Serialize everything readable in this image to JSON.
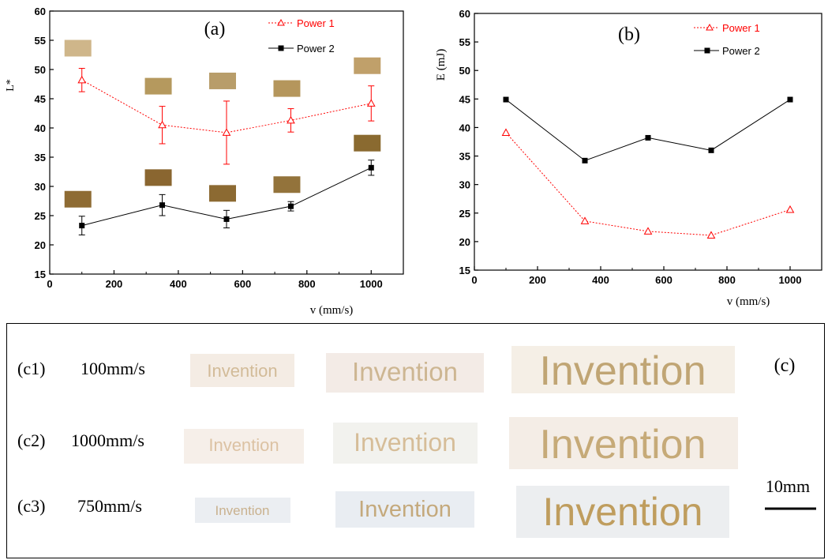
{
  "chart_data": [
    {
      "type": "line",
      "panel_label": "(a)",
      "xlabel": "v (mm/s)",
      "ylabel": "L*",
      "xlim": [
        0,
        1100
      ],
      "ylim": [
        15,
        60
      ],
      "xticks": [
        0,
        200,
        400,
        600,
        800,
        1000
      ],
      "yticks": [
        15,
        20,
        25,
        30,
        35,
        40,
        45,
        50,
        55,
        60
      ],
      "grid": false,
      "legend_position": "top-right",
      "x": [
        100,
        350,
        550,
        750,
        1000
      ],
      "series": [
        {
          "name": "Power 1",
          "values": [
            48.2,
            40.5,
            39.2,
            41.3,
            44.2
          ],
          "error": [
            2.0,
            3.2,
            5.4,
            2.0,
            3.0
          ],
          "color": "#ff0000",
          "marker": "open-triangle",
          "line": "dotted"
        },
        {
          "name": "Power 2",
          "values": [
            23.3,
            26.8,
            24.4,
            26.6,
            33.2
          ],
          "error": [
            1.6,
            1.8,
            1.5,
            0.8,
            1.3
          ],
          "color": "#000000",
          "marker": "filled-square",
          "line": "solid"
        }
      ],
      "swatch_colors": {
        "power1": [
          "#cfb68a",
          "#b5995e",
          "#b89d6a",
          "#b5965c",
          "#c0a06a"
        ],
        "power2": [
          "#8e6b33",
          "#8a6630",
          "#8c6a32",
          "#93733b",
          "#8a6a30"
        ]
      }
    },
    {
      "type": "line",
      "panel_label": "(b)",
      "xlabel": "v (mm/s)",
      "ylabel": "E (mJ)",
      "xlim": [
        0,
        1100
      ],
      "ylim": [
        15,
        60
      ],
      "xticks": [
        0,
        200,
        400,
        600,
        800,
        1000
      ],
      "yticks": [
        15,
        20,
        25,
        30,
        35,
        40,
        45,
        50,
        55,
        60
      ],
      "grid": false,
      "legend_position": "top-right",
      "x": [
        100,
        350,
        550,
        750,
        1000
      ],
      "series": [
        {
          "name": "Power 1",
          "values": [
            39.1,
            23.6,
            21.8,
            21.1,
            25.6
          ],
          "color": "#ff0000",
          "marker": "open-triangle",
          "line": "dotted"
        },
        {
          "name": "Power 2",
          "values": [
            44.9,
            34.2,
            38.2,
            36.0,
            44.9
          ],
          "color": "#000000",
          "marker": "filled-square",
          "line": "solid"
        }
      ]
    }
  ],
  "panel_c": {
    "panel_label": "(c)",
    "scale_label": "10mm",
    "sample_word": "Invention",
    "rows": [
      {
        "label": "(c1)",
        "speed": "100mm/s",
        "tint": "#f4ece4",
        "ink": "#d2bb98"
      },
      {
        "label": "(c2)",
        "speed": "1000mm/s",
        "tint": "#f6efe9",
        "ink": "#d8bf9a"
      },
      {
        "label": "(c3)",
        "speed": "750mm/s",
        "tint": "#ebeef2",
        "ink": "#c7ad7e"
      }
    ]
  }
}
